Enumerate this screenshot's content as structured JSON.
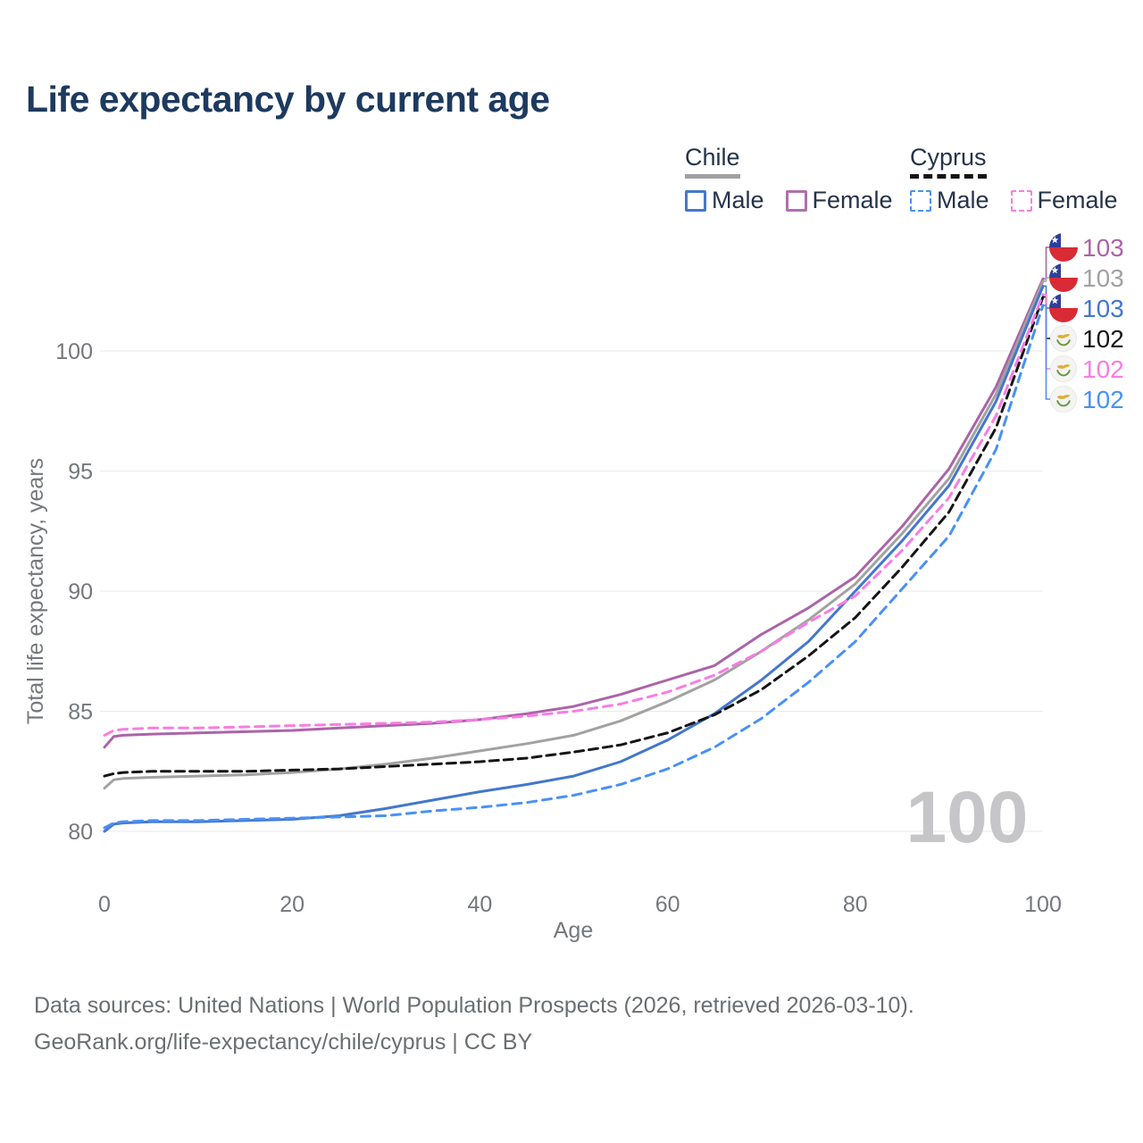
{
  "title": "Life expectancy by current age",
  "legend": {
    "groups": [
      {
        "label": "Chile",
        "underline_color": "#a0a0a0",
        "underline_style": "solid",
        "items": [
          {
            "label": "Male",
            "color": "#4377cd",
            "dashed": false
          },
          {
            "label": "Female",
            "color": "#b06fad",
            "dashed": false
          }
        ]
      },
      {
        "label": "Cyprus",
        "underline_color": "#151515",
        "underline_style": "dashed",
        "items": [
          {
            "label": "Male",
            "color": "#4891f5",
            "dashed": true
          },
          {
            "label": "Female",
            "color": "#f97ce4",
            "dashed": true
          }
        ]
      }
    ]
  },
  "chart_data": {
    "type": "line",
    "title": "Life expectancy by current age",
    "xlabel": "Age",
    "ylabel": "Total life expectancy, years",
    "xticks": [
      0,
      20,
      40,
      60,
      80,
      100
    ],
    "yticks": [
      80,
      85,
      90,
      95,
      100
    ],
    "xlim": [
      0,
      100
    ],
    "ylim": [
      79,
      104.5
    ],
    "grid": "horizontal",
    "grid_color": "#eaeaea",
    "watermark": "100",
    "x": [
      0,
      1,
      2,
      5,
      10,
      15,
      20,
      25,
      30,
      35,
      40,
      45,
      50,
      55,
      60,
      65,
      70,
      75,
      80,
      85,
      90,
      95,
      100
    ],
    "series": [
      {
        "id": "chile-female",
        "name": "Chile Female",
        "flag": "chile",
        "color": "#ab64a8",
        "dash": "",
        "end_label": "103",
        "values": [
          83.5,
          83.95,
          84.0,
          84.05,
          84.1,
          84.15,
          84.2,
          84.3,
          84.4,
          84.5,
          84.65,
          84.9,
          85.2,
          85.7,
          86.3,
          86.9,
          88.2,
          89.3,
          90.6,
          92.7,
          95.1,
          98.5,
          103.0
        ]
      },
      {
        "id": "chile-total",
        "name": "Chile",
        "flag": "chile",
        "color": "#a2a2a2",
        "dash": "",
        "end_label": "103",
        "values": [
          81.8,
          82.15,
          82.2,
          82.25,
          82.3,
          82.35,
          82.45,
          82.6,
          82.8,
          83.05,
          83.35,
          83.65,
          84.0,
          84.6,
          85.4,
          86.3,
          87.5,
          88.8,
          90.3,
          92.4,
          94.7,
          98.2,
          102.9
        ]
      },
      {
        "id": "chile-male",
        "name": "Chile Male",
        "flag": "chile",
        "color": "#4377cd",
        "dash": "",
        "end_label": "103",
        "values": [
          80.0,
          80.3,
          80.35,
          80.4,
          80.4,
          80.45,
          80.5,
          80.65,
          80.95,
          81.3,
          81.65,
          81.95,
          82.3,
          82.9,
          83.8,
          84.9,
          86.3,
          87.9,
          90.0,
          92.1,
          94.4,
          97.9,
          102.7
        ]
      },
      {
        "id": "cyprus-total",
        "name": "Cyprus",
        "flag": "cyprus",
        "color": "#151515",
        "dash": "10 6",
        "end_label": "102",
        "values": [
          82.3,
          82.4,
          82.45,
          82.5,
          82.5,
          82.5,
          82.55,
          82.6,
          82.7,
          82.8,
          82.9,
          83.05,
          83.3,
          83.6,
          84.1,
          84.85,
          85.9,
          87.3,
          88.9,
          91.0,
          93.3,
          96.8,
          102.25
        ]
      },
      {
        "id": "cyprus-female",
        "name": "Cyprus Female",
        "flag": "cyprus",
        "color": "#f97ce4",
        "dash": "10 7",
        "end_label": "102",
        "values": [
          84.0,
          84.2,
          84.25,
          84.3,
          84.3,
          84.35,
          84.4,
          84.45,
          84.5,
          84.55,
          84.65,
          84.8,
          85.0,
          85.3,
          85.8,
          86.5,
          87.5,
          88.7,
          89.8,
          91.7,
          93.9,
          97.3,
          102.35
        ]
      },
      {
        "id": "cyprus-male",
        "name": "Cyprus Male",
        "flag": "cyprus",
        "color": "#4891f5",
        "dash": "10 7",
        "end_label": "102",
        "values": [
          80.15,
          80.35,
          80.4,
          80.45,
          80.45,
          80.5,
          80.55,
          80.6,
          80.65,
          80.85,
          81.0,
          81.2,
          81.5,
          81.95,
          82.6,
          83.5,
          84.7,
          86.2,
          87.9,
          90.1,
          92.3,
          95.9,
          101.9
        ]
      }
    ]
  },
  "footer": {
    "line1": "Data sources: United Nations | World Population Prospects (2026, retrieved 2026-03-10).",
    "line2": "GeoRank.org/life-expectancy/chile/cyprus | CC BY"
  }
}
